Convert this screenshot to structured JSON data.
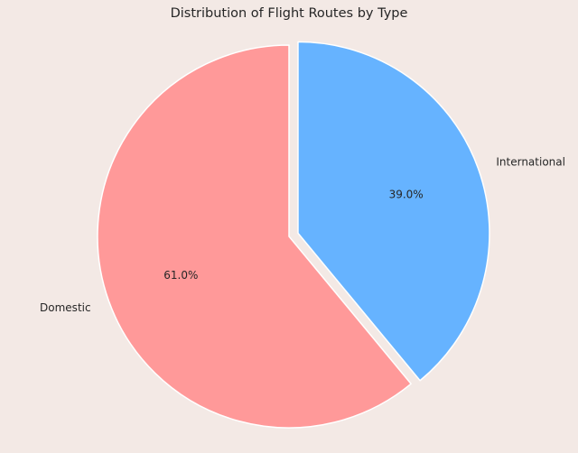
{
  "chart_data": {
    "type": "pie",
    "title": "Distribution of Flight Routes by Type",
    "slices": [
      {
        "label": "Domestic",
        "value": 61.0,
        "pct_text": "61.0%",
        "color": "#ff9999",
        "explode": 0
      },
      {
        "label": "International",
        "value": 39.0,
        "pct_text": "39.0%",
        "color": "#66b3ff",
        "explode": 0.05
      }
    ],
    "start_angle_deg": 90,
    "direction": "counterclockwise",
    "wedge_edge_color": "#ffffff",
    "background": "#f3e9e5"
  }
}
